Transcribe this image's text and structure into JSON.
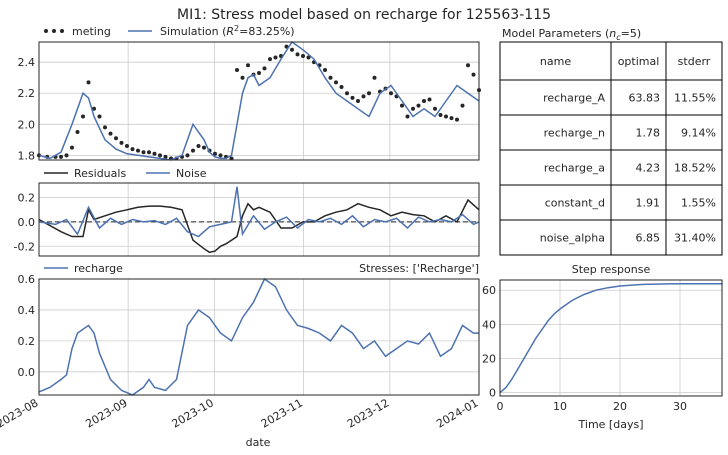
{
  "page": {
    "title": "MI1: Stress model based on recharge for 125563-115",
    "xlabel": "date",
    "time_axis_ticks": [
      "2023-08",
      "2023-09",
      "2023-10",
      "2023-11",
      "2023-12",
      "2024-01"
    ]
  },
  "colors": {
    "model": "#4c72b0",
    "obs": "#262626",
    "residuals": "#262626"
  },
  "table": {
    "title": "Model Parameters (n_c=5)",
    "title_prefix": "Model Parameters (",
    "title_n": "n",
    "title_sub": "c",
    "title_suffix": "=5)",
    "columns": [
      "name",
      "optimal",
      "stderr"
    ],
    "rows": [
      {
        "name": "recharge_A",
        "optimal": "63.83",
        "stderr": "11.55%"
      },
      {
        "name": "recharge_n",
        "optimal": "1.78",
        "stderr": "9.14%"
      },
      {
        "name": "recharge_a",
        "optimal": "4.23",
        "stderr": "18.52%"
      },
      {
        "name": "constant_d",
        "optimal": "1.91",
        "stderr": "1.55%"
      },
      {
        "name": "noise_alpha",
        "optimal": "6.85",
        "stderr": "31.40%"
      }
    ]
  },
  "chart_data": [
    {
      "type": "line",
      "panel": "head",
      "ylim": [
        1.77,
        2.53
      ],
      "yticks": [
        "1.8",
        "2.0",
        "2.2",
        "2.4"
      ],
      "ytick_values": [
        1.8,
        2.0,
        2.2,
        2.4
      ],
      "xlim": [
        0,
        160
      ],
      "legend": {
        "obs": "meting",
        "sim_prefix": "Simulation (",
        "sim_r": "R",
        "sim_sup": "2",
        "sim_suffix": "=83.25%)"
      },
      "series": [
        {
          "name": "meting",
          "marker": "dot",
          "x": [
            0,
            3,
            6,
            8,
            10,
            12,
            14,
            16,
            18,
            20,
            22,
            24,
            26,
            28,
            30,
            32,
            34,
            36,
            38,
            40,
            42,
            44,
            46,
            48,
            50,
            52,
            54,
            56,
            58,
            60,
            62,
            64,
            66,
            68,
            70,
            72,
            74,
            76,
            78,
            80,
            82,
            84,
            86,
            88,
            90,
            92,
            94,
            96,
            98,
            100,
            102,
            104,
            106,
            108,
            110,
            112,
            114,
            116,
            118,
            120,
            122,
            124,
            126,
            128,
            130,
            132,
            134,
            136,
            138,
            140,
            142,
            144,
            146,
            148,
            150,
            152,
            154,
            156,
            158,
            160
          ],
          "y": [
            1.8,
            1.79,
            1.79,
            1.79,
            1.8,
            1.85,
            1.95,
            2.05,
            2.27,
            2.1,
            2.05,
            1.98,
            1.94,
            1.91,
            1.88,
            1.86,
            1.84,
            1.83,
            1.82,
            1.82,
            1.81,
            1.8,
            1.79,
            1.78,
            1.78,
            1.79,
            1.8,
            1.83,
            1.86,
            1.85,
            1.83,
            1.81,
            1.8,
            1.79,
            1.78,
            2.35,
            2.3,
            2.38,
            2.32,
            2.33,
            2.36,
            2.42,
            2.43,
            2.44,
            2.5,
            2.48,
            2.45,
            2.44,
            2.43,
            2.4,
            2.38,
            2.35,
            2.3,
            2.27,
            2.24,
            2.2,
            2.17,
            2.15,
            2.18,
            2.2,
            2.3,
            2.21,
            2.23,
            2.2,
            2.18,
            2.12,
            2.05,
            2.1,
            2.12,
            2.15,
            2.16,
            2.1,
            2.06,
            2.05,
            2.04,
            2.03,
            2.12,
            2.38,
            2.32,
            2.22
          ]
        },
        {
          "name": "Simulation",
          "x": [
            0,
            4,
            8,
            12,
            16,
            18,
            20,
            24,
            28,
            32,
            36,
            40,
            44,
            48,
            52,
            56,
            60,
            62,
            64,
            66,
            68,
            70,
            72,
            74,
            76,
            78,
            80,
            84,
            88,
            92,
            96,
            100,
            104,
            108,
            112,
            116,
            120,
            124,
            128,
            132,
            136,
            140,
            144,
            148,
            152,
            156,
            160
          ],
          "y": [
            1.8,
            1.78,
            1.82,
            2.0,
            2.2,
            2.17,
            2.05,
            1.9,
            1.84,
            1.81,
            1.8,
            1.79,
            1.78,
            1.77,
            1.8,
            2.0,
            1.9,
            1.82,
            1.79,
            1.78,
            1.78,
            1.8,
            2.0,
            2.2,
            2.3,
            2.32,
            2.25,
            2.3,
            2.42,
            2.53,
            2.48,
            2.42,
            2.3,
            2.2,
            2.15,
            2.1,
            2.05,
            2.2,
            2.25,
            2.15,
            2.05,
            2.1,
            2.05,
            2.15,
            2.25,
            2.2,
            2.15
          ]
        }
      ]
    },
    {
      "type": "line",
      "panel": "residuals",
      "ylim": [
        -0.28,
        0.32
      ],
      "yticks": [
        "-0.2",
        "0.0",
        "0.2"
      ],
      "ytick_values": [
        -0.2,
        0.0,
        0.2
      ],
      "xlim": [
        0,
        160
      ],
      "series": [
        {
          "name": "Residuals",
          "x": [
            0,
            8,
            12,
            16,
            18,
            20,
            24,
            28,
            32,
            36,
            40,
            44,
            48,
            52,
            56,
            60,
            62,
            64,
            66,
            68,
            70,
            72,
            74,
            76,
            78,
            80,
            84,
            88,
            92,
            96,
            100,
            104,
            108,
            112,
            116,
            120,
            124,
            128,
            132,
            136,
            140,
            144,
            148,
            152,
            156,
            160
          ],
          "y": [
            0.02,
            -0.08,
            -0.12,
            -0.12,
            0.1,
            0.02,
            0.05,
            0.08,
            0.1,
            0.12,
            0.13,
            0.13,
            0.12,
            0.1,
            -0.15,
            -0.22,
            -0.25,
            -0.24,
            -0.2,
            -0.18,
            -0.15,
            -0.12,
            0.05,
            0.15,
            0.1,
            0.12,
            0.08,
            -0.05,
            -0.05,
            0.0,
            0.0,
            0.05,
            0.08,
            0.1,
            0.15,
            0.12,
            0.1,
            0.05,
            0.08,
            0.06,
            0.05,
            0.0,
            0.05,
            0.0,
            0.18,
            0.1
          ]
        },
        {
          "name": "Noise",
          "x": [
            0,
            6,
            10,
            14,
            18,
            22,
            26,
            30,
            34,
            38,
            42,
            46,
            50,
            54,
            58,
            62,
            66,
            70,
            72,
            74,
            78,
            82,
            86,
            90,
            94,
            98,
            102,
            106,
            110,
            114,
            118,
            122,
            126,
            130,
            134,
            138,
            142,
            146,
            150,
            154,
            158,
            160
          ],
          "y": [
            0.0,
            -0.02,
            0.02,
            -0.1,
            0.12,
            -0.05,
            0.03,
            -0.02,
            0.02,
            0.0,
            0.01,
            -0.02,
            0.03,
            -0.08,
            -0.12,
            -0.04,
            -0.02,
            0.0,
            0.29,
            -0.1,
            0.05,
            -0.06,
            0.0,
            0.04,
            -0.05,
            0.02,
            0.0,
            0.03,
            -0.02,
            0.05,
            -0.04,
            0.02,
            0.0,
            0.03,
            -0.05,
            0.04,
            0.0,
            0.02,
            0.0,
            0.06,
            -0.02,
            0.0
          ]
        }
      ]
    },
    {
      "type": "line",
      "panel": "recharge",
      "ylim": [
        -0.15,
        0.6
      ],
      "yticks": [
        "0.0",
        "0.2",
        "0.4",
        "0.6"
      ],
      "ytick_values": [
        0.0,
        0.2,
        0.4,
        0.6
      ],
      "xlim": [
        0,
        160
      ],
      "legend": {
        "series": "recharge"
      },
      "stresses_label": "Stresses: ['Recharge']",
      "series": [
        {
          "name": "recharge",
          "x": [
            0,
            4,
            8,
            10,
            12,
            14,
            18,
            20,
            22,
            26,
            30,
            34,
            38,
            40,
            42,
            46,
            50,
            54,
            58,
            62,
            66,
            70,
            74,
            78,
            82,
            86,
            90,
            94,
            98,
            102,
            106,
            110,
            114,
            118,
            122,
            126,
            130,
            134,
            138,
            142,
            146,
            150,
            154,
            158,
            160
          ],
          "y": [
            -0.13,
            -0.1,
            -0.05,
            -0.02,
            0.15,
            0.25,
            0.3,
            0.25,
            0.12,
            -0.05,
            -0.12,
            -0.15,
            -0.1,
            -0.05,
            -0.1,
            -0.12,
            -0.05,
            0.3,
            0.4,
            0.35,
            0.25,
            0.2,
            0.35,
            0.45,
            0.6,
            0.55,
            0.4,
            0.3,
            0.28,
            0.25,
            0.2,
            0.3,
            0.25,
            0.15,
            0.2,
            0.1,
            0.15,
            0.2,
            0.18,
            0.25,
            0.1,
            0.15,
            0.3,
            0.25,
            0.25
          ]
        }
      ]
    },
    {
      "type": "line",
      "panel": "step_response",
      "title": "Step response",
      "xlabel": "Time [days]",
      "ylim": [
        -2,
        66
      ],
      "xlim": [
        0,
        37
      ],
      "xticks": [
        "0",
        "10",
        "20",
        "30"
      ],
      "xtick_values": [
        0,
        10,
        20,
        30
      ],
      "yticks": [
        "0",
        "20",
        "40",
        "60"
      ],
      "ytick_values": [
        0,
        20,
        40,
        60
      ],
      "series": [
        {
          "name": "step",
          "x": [
            0,
            1,
            2,
            3,
            4,
            5,
            6,
            7,
            8,
            9,
            10,
            12,
            14,
            16,
            18,
            20,
            22,
            24,
            26,
            28,
            30,
            32,
            34,
            36,
            37
          ],
          "y": [
            0,
            3,
            8,
            14,
            20,
            26,
            32,
            37,
            42,
            46,
            49,
            54,
            57.5,
            60,
            61.5,
            62.5,
            63,
            63.4,
            63.6,
            63.7,
            63.8,
            63.8,
            63.8,
            63.8,
            63.8
          ]
        }
      ]
    }
  ]
}
